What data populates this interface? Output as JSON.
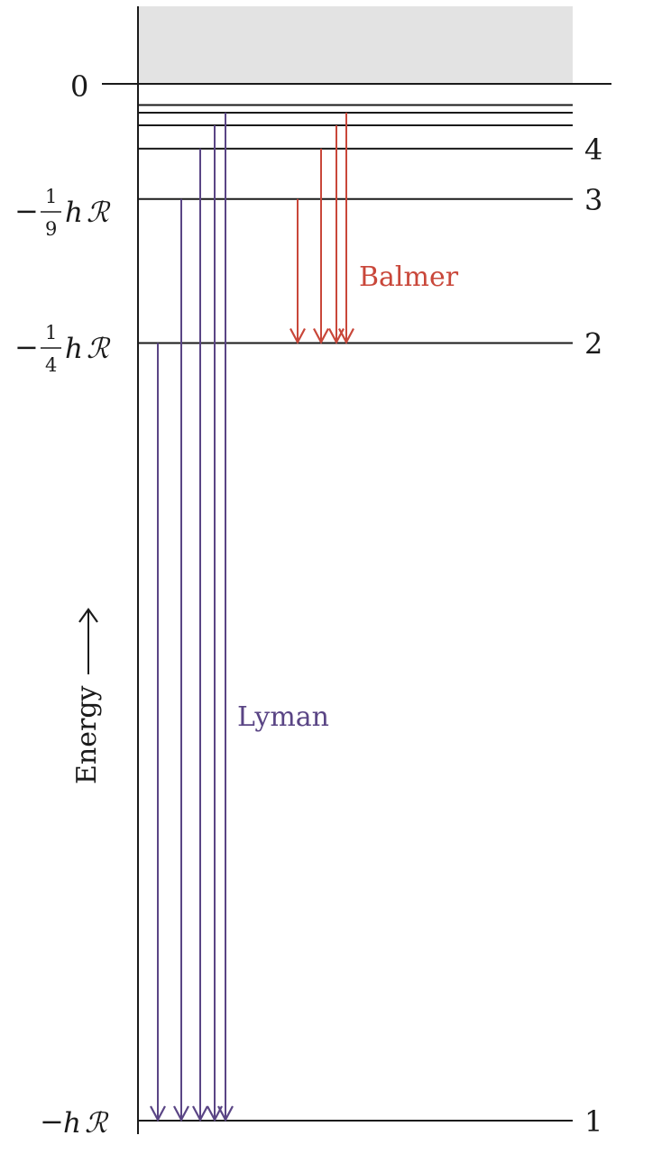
{
  "colors": {
    "lyman": "#5a4585",
    "balmer": "#c9473a",
    "axis": "#1a1a1a",
    "continuum": "#e3e3e3"
  },
  "energy_labels": {
    "zero": "0",
    "n3_frac_num": "1",
    "n3_frac_den": "9",
    "n2_frac_num": "1",
    "n2_frac_den": "4",
    "minus": "−",
    "h": "h",
    "R": "ℛ"
  },
  "levels": [
    {
      "n": 1,
      "label": "1"
    },
    {
      "n": 2,
      "label": "2"
    },
    {
      "n": 3,
      "label": "3"
    },
    {
      "n": 4,
      "label": "4"
    },
    {
      "n": 5,
      "label": ""
    },
    {
      "n": 6,
      "label": ""
    },
    {
      "n": 7,
      "label": ""
    }
  ],
  "series": {
    "lyman": {
      "name": "Lyman",
      "to_level": 1,
      "from_levels": [
        2,
        3,
        4,
        5,
        6
      ]
    },
    "balmer": {
      "name": "Balmer",
      "to_level": 2,
      "from_levels": [
        3,
        4,
        5,
        6
      ]
    }
  },
  "axis_label": "Energy"
}
